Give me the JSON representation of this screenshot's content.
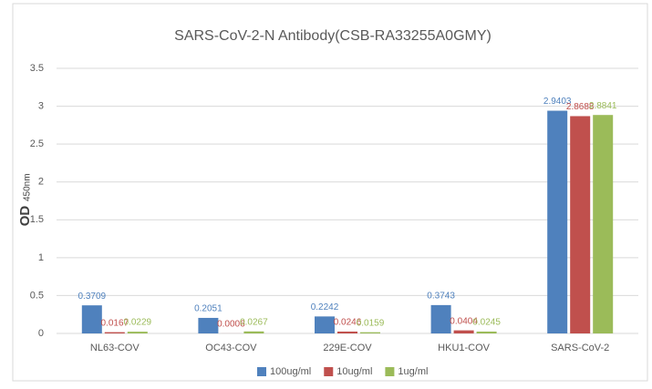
{
  "chart_data": {
    "type": "bar",
    "title": "SARS-CoV-2-N Antibody(CSB-RA33255A0GMY)",
    "y_label": "OD",
    "y_label_sub": "450nm",
    "categories": [
      "NL63-COV",
      "OC43-COV",
      "229E-COV",
      "HKU1-COV",
      "SARS-CoV-2"
    ],
    "series": [
      {
        "name": "100ug/ml",
        "color": "#4f81bd",
        "values": [
          0.3709,
          0.2051,
          0.2242,
          0.3743,
          2.9403
        ]
      },
      {
        "name": "10ug/ml",
        "color": "#c0504d",
        "values": [
          0.0167,
          0.0006,
          0.0246,
          0.0404,
          2.8688
        ]
      },
      {
        "name": "1ug/ml",
        "color": "#9bbb59",
        "values": [
          0.0229,
          0.0267,
          0.0159,
          0.0245,
          2.8841
        ]
      }
    ],
    "ylim": [
      0,
      3.5
    ],
    "yticks": [
      0,
      0.5,
      1,
      1.5,
      2,
      2.5,
      3,
      3.5
    ],
    "grid": true,
    "legend": "bottom"
  }
}
